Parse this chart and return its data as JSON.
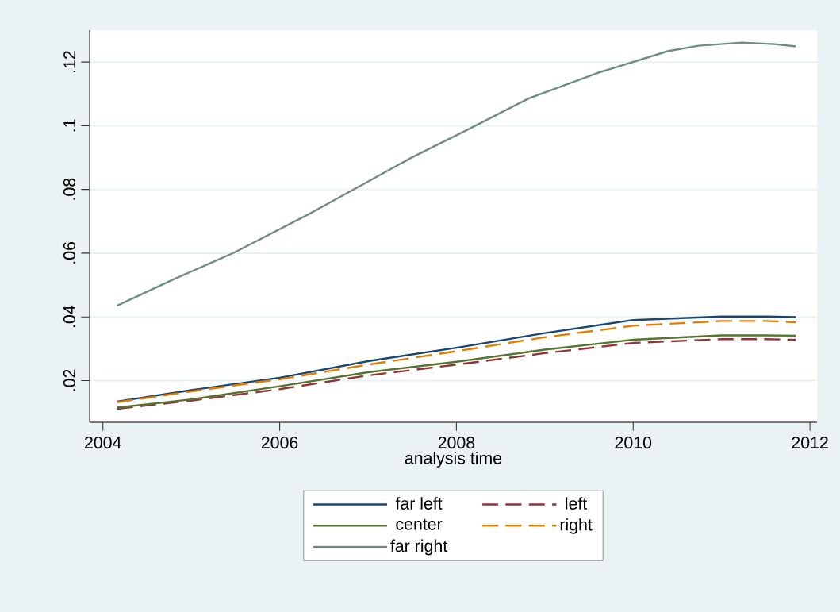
{
  "chart_data": {
    "type": "line",
    "xlabel": "analysis time",
    "grid": "y",
    "legend": "bottom",
    "xlim": [
      2003.85,
      2012.08
    ],
    "ylim": [
      0.0069,
      0.13
    ],
    "xticks": [
      2004,
      2006,
      2008,
      2010,
      2012
    ],
    "yticks": [
      {
        "value": 0.02,
        "label": ".02"
      },
      {
        "value": 0.04,
        "label": ".04"
      },
      {
        "value": 0.06,
        "label": ".06"
      },
      {
        "value": 0.08,
        "label": ".08"
      },
      {
        "value": 0.1,
        "label": ".1"
      },
      {
        "value": 0.12,
        "label": ".12"
      }
    ],
    "series": [
      {
        "name": "far left",
        "color": "#1a476f",
        "line_style": "solid",
        "x": [
          2004.16,
          2005,
          2006,
          2007,
          2008,
          2009,
          2010,
          2011,
          2011.5,
          2011.84
        ],
        "values": [
          0.0134,
          0.017,
          0.0209,
          0.0261,
          0.0303,
          0.0349,
          0.039,
          0.0401,
          0.0401,
          0.0399
        ]
      },
      {
        "name": "left",
        "color": "#90353b",
        "line_style": "dashed",
        "x": [
          2004.16,
          2005,
          2006,
          2007,
          2008,
          2009,
          2010,
          2011,
          2011.5,
          2011.84
        ],
        "values": [
          0.0111,
          0.0137,
          0.0173,
          0.0216,
          0.025,
          0.0286,
          0.0318,
          0.033,
          0.033,
          0.0328
        ]
      },
      {
        "name": "center",
        "color": "#55752f",
        "line_style": "solid",
        "x": [
          2004.16,
          2005,
          2006,
          2007,
          2008,
          2009,
          2010,
          2011,
          2011.5,
          2011.84
        ],
        "values": [
          0.0115,
          0.0141,
          0.0182,
          0.0226,
          0.0259,
          0.0297,
          0.0328,
          0.0342,
          0.0342,
          0.0341
        ]
      },
      {
        "name": "right",
        "color": "#e37e00",
        "line_style": "dashed",
        "x": [
          2004.16,
          2005,
          2006,
          2007,
          2008,
          2009,
          2010,
          2011,
          2011.5,
          2011.84
        ],
        "values": [
          0.0132,
          0.0166,
          0.0204,
          0.025,
          0.0292,
          0.0336,
          0.0372,
          0.0387,
          0.0387,
          0.0383
        ]
      },
      {
        "name": "far right",
        "color": "#6e8e84",
        "line_style": "solid",
        "x": [
          2004.16,
          2004.81,
          2005.48,
          2006.32,
          2006.91,
          2007.5,
          2008.1,
          2008.82,
          2009.6,
          2010.39,
          2010.74,
          2011.23,
          2011.6,
          2011.84
        ],
        "values": [
          0.0435,
          0.0519,
          0.0601,
          0.0721,
          0.0811,
          0.0901,
          0.0984,
          0.1086,
          0.1166,
          0.1234,
          0.1251,
          0.1261,
          0.1256,
          0.1249
        ]
      }
    ]
  }
}
